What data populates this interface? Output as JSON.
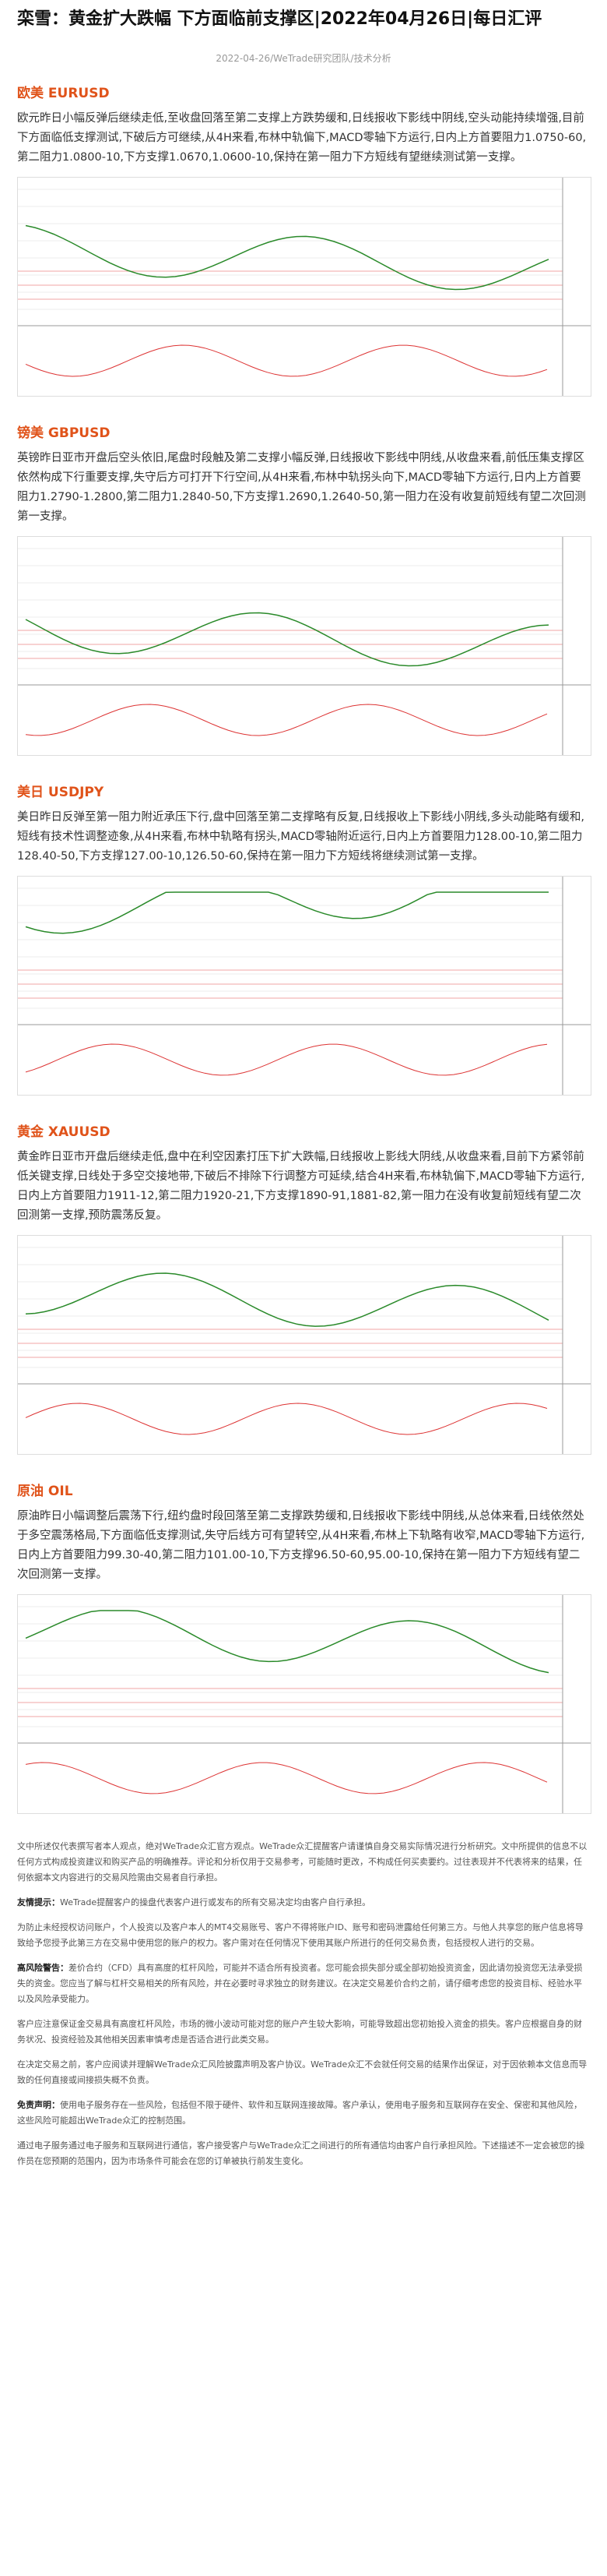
{
  "header": {
    "title": "栾雪：黄金扩大跌幅 下方面临前支撑区|2022年04月26日|每日汇评",
    "meta": "2022-04-26/WeTrade研究团队/技术分析"
  },
  "sections": [
    {
      "heading": "欧美 EURUSD",
      "body": "欧元昨日小幅反弹后继续走低,至收盘回落至第二支撑上方跌势缓和,日线报收下影线中阴线,空头动能持续增强,目前下方面临低支撑测试,下破后方可继续,从4H来看,布林中轨偏下,MACD零轴下方运行,日内上方首要阻力1.0750-60,第二阻力1.0800-10,下方支撑1.0670,1.0600-10,保持在第一阻力下方短线有望继续测试第一支撑。"
    },
    {
      "heading": "镑美 GBPUSD",
      "body": "英镑昨日亚市开盘后空头依旧,尾盘时段触及第二支撑小幅反弹,日线报收下影线中阴线,从收盘来看,前低压集支撑区依然构成下行重要支撑,失守后方可打开下行空间,从4H来看,布林中轨拐头向下,MACD零轴下方运行,日内上方首要阻力1.2790-1.2800,第二阻力1.2840-50,下方支撑1.2690,1.2640-50,第一阻力在没有收复前短线有望二次回测第一支撑。"
    },
    {
      "heading": "美日 USDJPY",
      "body": "美日昨日反弹至第一阻力附近承压下行,盘中回落至第二支撑略有反复,日线报收上下影线小阴线,多头动能略有缓和,短线有技术性调整迹象,从4H来看,布林中轨略有拐头,MACD零轴附近运行,日内上方首要阻力128.00-10,第二阻力128.40-50,下方支撑127.00-10,126.50-60,保持在第一阻力下方短线将继续测试第一支撑。"
    },
    {
      "heading": "黄金 XAUUSD",
      "body": "黄金昨日亚市开盘后继续走低,盘中在利空因素打压下扩大跌幅,日线报收上影线大阴线,从收盘来看,目前下方紧邻前低关键支撑,日线处于多空交接地带,下破后不排除下行调整方可延续,结合4H来看,布林轨偏下,MACD零轴下方运行,日内上方首要阻力1911-12,第二阻力1920-21,下方支撑1890-91,1881-82,第一阻力在没有收复前短线有望二次回测第一支撑,预防震荡反复。"
    },
    {
      "heading": "原油 OIL",
      "body": "原油昨日小幅调整后震荡下行,纽约盘时段回落至第二支撑跌势缓和,日线报收下影线中阴线,从总体来看,日线依然处于多空震荡格局,下方面临低支撑测试,失守后线方可有望转空,从4H来看,布林上下轨略有收窄,MACD零轴下方运行,日内上方首要阻力99.30-40,第二阻力101.00-10,下方支撑96.50-60,95.00-10,保持在第一阻力下方短线有望二次回测第一支撑。"
    }
  ],
  "disclaimer": [
    {
      "label": "",
      "text": "文中所述仅代表撰写者本人观点，绝对WeTrade众汇官方观点。WeTrade众汇提醒客户请谨慎自身交易实际情况进行分析研究。文中所提供的信息不以任何方式构成投资建议和购买产品的明确推荐。评论和分析仅用于交易参考，可能随时更改，不构成任何买卖要约。过往表现并不代表将来的结果，任何依据本文内容进行的交易风险需由交易者自行承担。"
    },
    {
      "label": "友情提示：",
      "text": "WeTrade提醒客户的操盘代表客户进行或发布的所有交易决定均由客户自行承担。"
    },
    {
      "label": "",
      "text": "为防止未经授权访问账户，个人投资以及客户本人的MT4交易账号、客户不得将账户ID、账号和密码泄露给任何第三方。与他人共享您的账户信息将导致给予您授予此第三方在交易中使用您的账户的权力。客户需对在任何情况下使用其账户所进行的任何交易负责，包括授权人进行的交易。"
    },
    {
      "label": "高风险警告：",
      "text": "差价合约（CFD）具有高度的杠杆风险，可能并不适合所有投资者。您可能会损失部分或全部初始投资资金，因此请勿投资您无法承受损失的资金。您应当了解与杠杆交易相关的所有风险，并在必要时寻求独立的财务建议。在决定交易差价合约之前，请仔细考虑您的投资目标、经验水平以及风险承受能力。"
    },
    {
      "label": "",
      "text": "客户应注意保证金交易具有高度杠杆风险，市场的微小波动可能对您的账户产生较大影响，可能导致超出您初始投入资金的损失。客户应根据自身的财务状况、投资经验及其他相关因素审慎考虑是否适合进行此类交易。"
    },
    {
      "label": "",
      "text": "在决定交易之前，客户应阅读并理解WeTrade众汇风险披露声明及客户协议。WeTrade众汇不会就任何交易的结果作出保证，对于因依赖本文信息而导致的任何直接或间接损失概不负责。"
    },
    {
      "label": "免责声明：",
      "text": "使用电子服务存在一些风险，包括但不限于硬件、软件和互联网连接故障。客户承认，使用电子服务和互联网存在安全、保密和其他风险，这些风险可能超出WeTrade众汇的控制范围。"
    },
    {
      "label": "",
      "text": "通过电子服务通过电子服务和互联网进行通信，客户接受客户与WeTrade众汇之间进行的所有通信均由客户自行承担风险。下述描述不一定会被您的操作员在您预期的范围内，因为市场条件可能会在您的订单被执行前发生变化。"
    }
  ]
}
